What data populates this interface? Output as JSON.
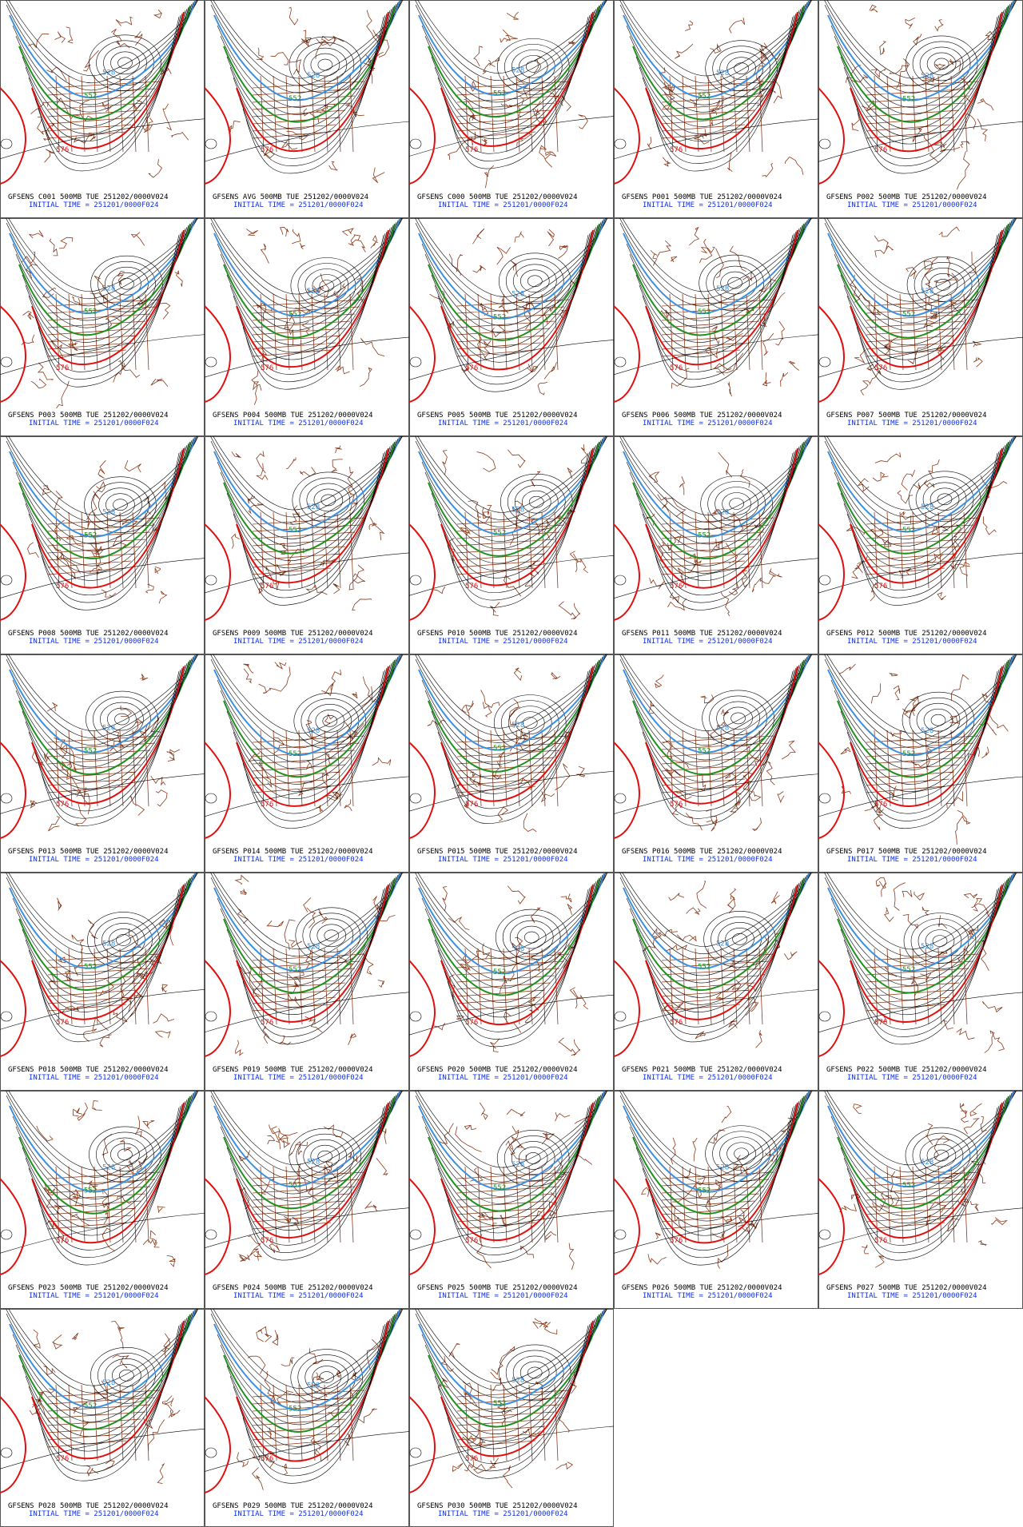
{
  "panels": [
    {
      "title": "GFSENS C001 500MB TUE 251202/0000V024",
      "init_time": "INITIAL TIME = 251201/0000F024",
      "contour_labels": [
        "528",
        "552",
        "576"
      ]
    },
    {
      "title": "GFSENS AVG 500MB TUE 251202/0000V024",
      "init_time": "INITIAL TIME = 251201/0000F024",
      "contour_labels": [
        "528",
        "552",
        "576"
      ]
    },
    {
      "title": "GFSENS C000 500MB TUE 251202/0000V024",
      "init_time": "INITIAL TIME = 251201/0000F024",
      "contour_labels": [
        "528",
        "552",
        "576"
      ]
    },
    {
      "title": "GFSENS P001 500MB TUE 251202/0000V024",
      "init_time": "INITIAL TIME = 251201/0000F024",
      "contour_labels": [
        "528",
        "552",
        "576"
      ]
    },
    {
      "title": "GFSENS P002 500MB TUE 251202/0000V024",
      "init_time": "INITIAL TIME = 251201/0000F024",
      "contour_labels": [
        "528",
        "552",
        "576"
      ]
    },
    {
      "title": "GFSENS P003 500MB TUE 251202/0000V024",
      "init_time": "INITIAL TIME = 251201/0000F024",
      "contour_labels": [
        "528",
        "552",
        "576"
      ]
    },
    {
      "title": "GFSENS P004 500MB TUE 251202/0000V024",
      "init_time": "INITIAL TIME = 251201/0000F024",
      "contour_labels": [
        "528",
        "552",
        "576"
      ]
    },
    {
      "title": "GFSENS P005 500MB TUE 251202/0000V024",
      "init_time": "INITIAL TIME = 251201/0000F024",
      "contour_labels": [
        "528",
        "552",
        "576"
      ]
    },
    {
      "title": "GFSENS P006 500MB TUE 251202/0000V024",
      "init_time": "INITIAL TIME = 251201/0000F024",
      "contour_labels": [
        "528",
        "552",
        "576"
      ]
    },
    {
      "title": "GFSENS P007 500MB TUE 251202/0000V024",
      "init_time": "INITIAL TIME = 251201/0000F024",
      "contour_labels": [
        "528",
        "552",
        "576"
      ]
    },
    {
      "title": "GFSENS P008 500MB TUE 251202/0000V024",
      "init_time": "INITIAL TIME = 251201/0000F024",
      "contour_labels": [
        "528",
        "552",
        "576"
      ]
    },
    {
      "title": "GFSENS P009 500MB TUE 251202/0000V024",
      "init_time": "INITIAL TIME = 251201/0000F024",
      "contour_labels": [
        "528",
        "552",
        "576"
      ]
    },
    {
      "title": "GFSENS P010 500MB TUE 251202/0000V024",
      "init_time": "INITIAL TIME = 251201/0000F024",
      "contour_labels": [
        "528",
        "552",
        "576"
      ]
    },
    {
      "title": "GFSENS P011 500MB TUE 251202/0000V024",
      "init_time": "INITIAL TIME = 251201/0000F024",
      "contour_labels": [
        "528",
        "552",
        "576"
      ]
    },
    {
      "title": "GFSENS P012 500MB TUE 251202/0000V024",
      "init_time": "INITIAL TIME = 251201/0000F024",
      "contour_labels": [
        "528",
        "552",
        "576"
      ]
    },
    {
      "title": "GFSENS P013 500MB TUE 251202/0000V024",
      "init_time": "INITIAL TIME = 251201/0000F024",
      "contour_labels": [
        "528",
        "552",
        "576"
      ]
    },
    {
      "title": "GFSENS P014 500MB TUE 251202/0000V024",
      "init_time": "INITIAL TIME = 251201/0000F024",
      "contour_labels": [
        "528",
        "552",
        "576"
      ]
    },
    {
      "title": "GFSENS P015 500MB TUE 251202/0000V024",
      "init_time": "INITIAL TIME = 251201/0000F024",
      "contour_labels": [
        "528",
        "552",
        "576"
      ]
    },
    {
      "title": "GFSENS P016 500MB TUE 251202/0000V024",
      "init_time": "INITIAL TIME = 251201/0000F024",
      "contour_labels": [
        "528",
        "552",
        "576"
      ]
    },
    {
      "title": "GFSENS P017 500MB TUE 251202/0000V024",
      "init_time": "INITIAL TIME = 251201/0000F024",
      "contour_labels": [
        "528",
        "552",
        "576"
      ]
    },
    {
      "title": "GFSENS P018 500MB TUE 251202/0000V024",
      "init_time": "INITIAL TIME = 251201/0000F024",
      "contour_labels": [
        "528",
        "552",
        "576"
      ]
    },
    {
      "title": "GFSENS P019 500MB TUE 251202/0000V024",
      "init_time": "INITIAL TIME = 251201/0000F024",
      "contour_labels": [
        "528",
        "552",
        "576"
      ]
    },
    {
      "title": "GFSENS P020 500MB TUE 251202/0000V024",
      "init_time": "INITIAL TIME = 251201/0000F024",
      "contour_labels": [
        "528",
        "552",
        "576"
      ]
    },
    {
      "title": "GFSENS P021 500MB TUE 251202/0000V024",
      "init_time": "INITIAL TIME = 251201/0000F024",
      "contour_labels": [
        "528",
        "552",
        "576"
      ]
    },
    {
      "title": "GFSENS P022 500MB TUE 251202/0000V024",
      "init_time": "INITIAL TIME = 251201/0000F024",
      "contour_labels": [
        "528",
        "552",
        "576"
      ]
    },
    {
      "title": "GFSENS P023 500MB TUE 251202/0000V024",
      "init_time": "INITIAL TIME = 251201/0000F024",
      "contour_labels": [
        "528",
        "552",
        "576"
      ]
    },
    {
      "title": "GFSENS P024 500MB TUE 251202/0000V024",
      "init_time": "INITIAL TIME = 251201/0000F024",
      "contour_labels": [
        "528",
        "552",
        "576"
      ]
    },
    {
      "title": "GFSENS P025 500MB TUE 251202/0000V024",
      "init_time": "INITIAL TIME = 251201/0000F024",
      "contour_labels": [
        "528",
        "552",
        "576"
      ]
    },
    {
      "title": "GFSENS P026 500MB TUE 251202/0000V024",
      "init_time": "INITIAL TIME = 251201/0000F024",
      "contour_labels": [
        "528",
        "552",
        "576"
      ]
    },
    {
      "title": "GFSENS P027 500MB TUE 251202/0000V024",
      "init_time": "INITIAL TIME = 251201/0000F024",
      "contour_labels": [
        "528",
        "552",
        "576"
      ]
    },
    {
      "title": "GFSENS P028 500MB TUE 251202/0000V024",
      "init_time": "INITIAL TIME = 251201/0000F024",
      "contour_labels": [
        "528",
        "552",
        "576"
      ]
    },
    {
      "title": "GFSENS P029 500MB TUE 251202/0000V024",
      "init_time": "INITIAL TIME = 251201/0000F024",
      "contour_labels": [
        "528",
        "552",
        "576"
      ]
    },
    {
      "title": "GFSENS P030 500MB TUE 251202/0000V024",
      "init_time": "INITIAL TIME = 251201/0000F024",
      "contour_labels": [
        "528",
        "552",
        "576"
      ]
    }
  ]
}
